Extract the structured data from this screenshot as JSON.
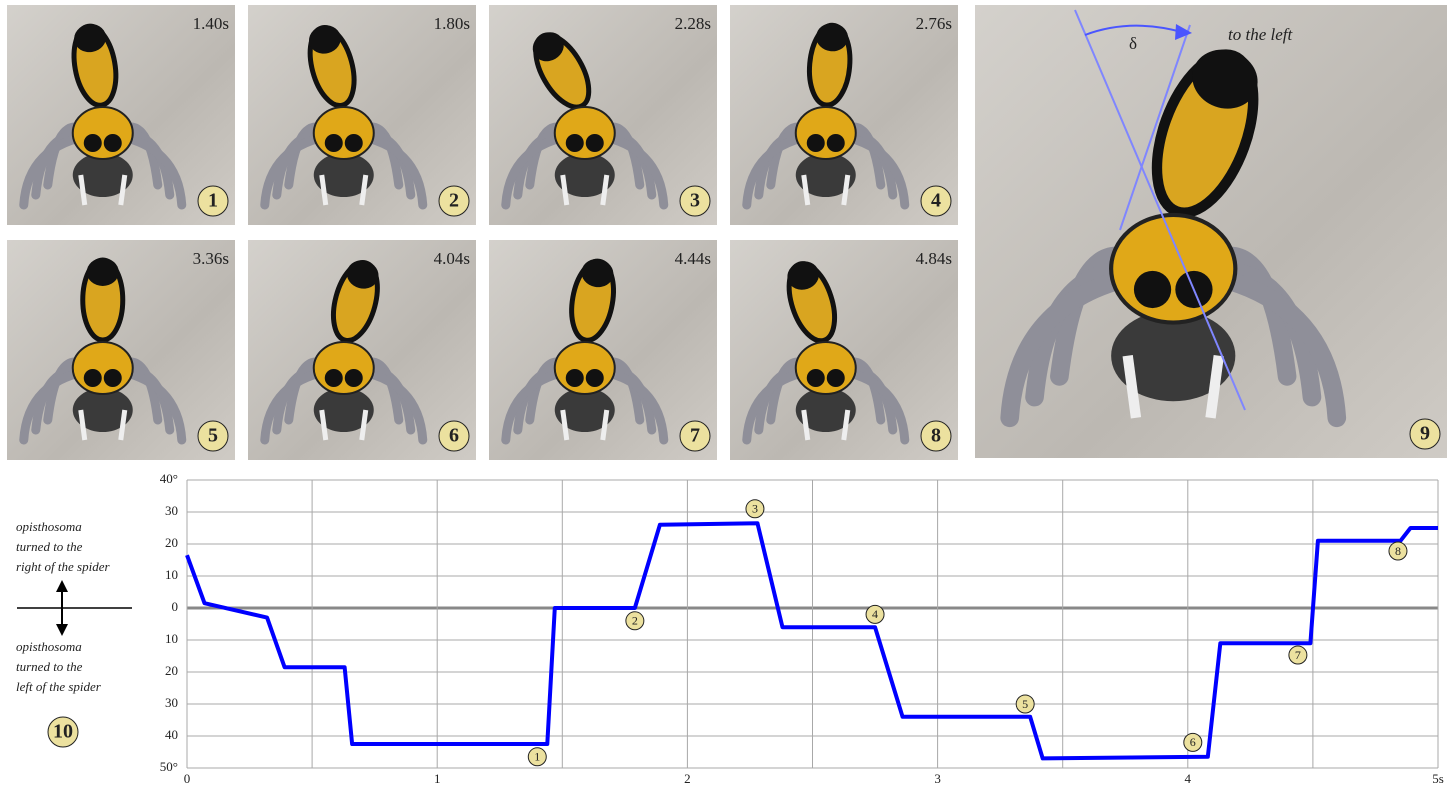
{
  "panels": [
    {
      "time": "1.40s",
      "number": "1"
    },
    {
      "time": "1.80s",
      "number": "2"
    },
    {
      "time": "2.28s",
      "number": "3"
    },
    {
      "time": "2.76s",
      "number": "4"
    },
    {
      "time": "3.36s",
      "number": "5"
    },
    {
      "time": "4.04s",
      "number": "6"
    },
    {
      "time": "4.44s",
      "number": "7"
    },
    {
      "time": "4.84s",
      "number": "8"
    },
    {
      "number": "9",
      "caption": "to the left",
      "symbol": "δ"
    }
  ],
  "left_note": {
    "upper": [
      "opisthosoma",
      "turned to the",
      "right of the spider"
    ],
    "lower": [
      "opisthosoma",
      "turned to the",
      "left of the spider"
    ],
    "number": "10"
  },
  "chart_data": {
    "type": "line",
    "x": [
      0,
      0.07,
      0.32,
      0.39,
      0.63,
      0.66,
      1.44,
      1.47,
      1.79,
      1.89,
      2.28,
      2.38,
      2.75,
      2.86,
      3.37,
      3.42,
      4.08,
      4.13,
      4.49,
      4.52,
      4.85,
      4.89,
      5.0
    ],
    "values": [
      16.5,
      1.5,
      -3,
      -18.5,
      -18.5,
      -42.5,
      -42.5,
      0,
      0,
      26,
      26.5,
      -6,
      -6,
      -34,
      -34,
      -47,
      -46.5,
      -11,
      -11,
      21,
      21,
      25,
      25
    ],
    "color": "#0000ff",
    "xlim": [
      0,
      5
    ],
    "ylim": [
      -50,
      40
    ],
    "xticks": [
      0,
      1,
      2,
      3,
      4,
      {
        "value": 5,
        "label": "5s"
      }
    ],
    "xminor": [
      0.5,
      1.5,
      2.5,
      3.5,
      4.5
    ],
    "yticks": [
      {
        "value": 40,
        "label": "40°"
      },
      30,
      20,
      10,
      0,
      {
        "value": -10,
        "label": "10"
      },
      {
        "value": -20,
        "label": "20"
      },
      {
        "value": -30,
        "label": "30"
      },
      {
        "value": -40,
        "label": "40"
      },
      {
        "value": -50,
        "label": "50°"
      }
    ],
    "grid": true,
    "annotations": [
      {
        "label": "1",
        "x": 1.4,
        "y": -46.5
      },
      {
        "label": "2",
        "x": 1.79,
        "y": -4
      },
      {
        "label": "3",
        "x": 2.27,
        "y": 31
      },
      {
        "label": "4",
        "x": 2.75,
        "y": -2
      },
      {
        "label": "5",
        "x": 3.35,
        "y": -30
      },
      {
        "label": "6",
        "x": 4.02,
        "y": -42
      },
      {
        "label": "7",
        "x": 4.44,
        "y": -14.7
      },
      {
        "label": "8",
        "x": 4.84,
        "y": 17.8
      }
    ]
  }
}
